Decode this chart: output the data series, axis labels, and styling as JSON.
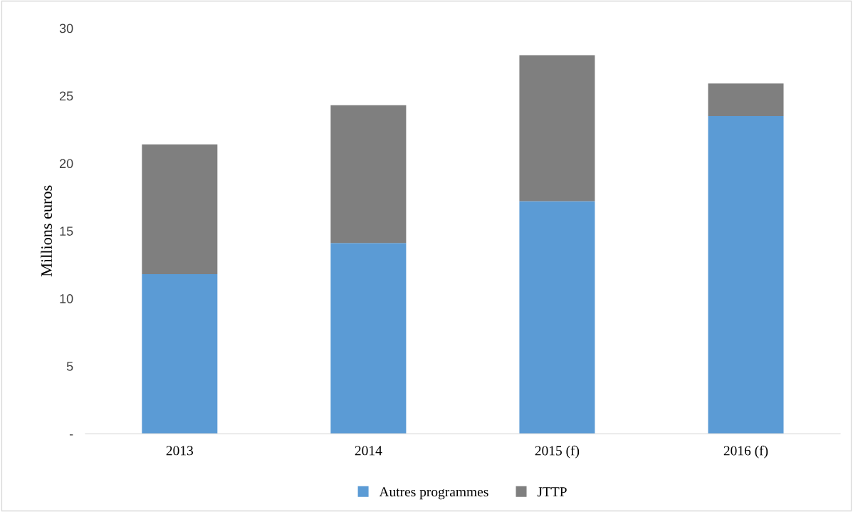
{
  "chart_data": {
    "type": "bar",
    "stacked": true,
    "ylabel": "Millions euros",
    "categories": [
      "2013",
      "2014",
      "2015 (f)",
      "2016 (f)"
    ],
    "series": [
      {
        "name": "Autres programmes",
        "color": "#5b9bd5",
        "values": [
          11.8,
          14.1,
          17.2,
          23.5
        ]
      },
      {
        "name": "JTTP",
        "color": "#7f7f7f",
        "values": [
          9.6,
          10.2,
          10.8,
          2.4
        ]
      }
    ],
    "ylim": [
      0,
      30
    ],
    "yticks": [
      {
        "value": 0,
        "label": "-"
      },
      5,
      10,
      15,
      20,
      25,
      30
    ],
    "grid": false,
    "legend": "bottom"
  }
}
